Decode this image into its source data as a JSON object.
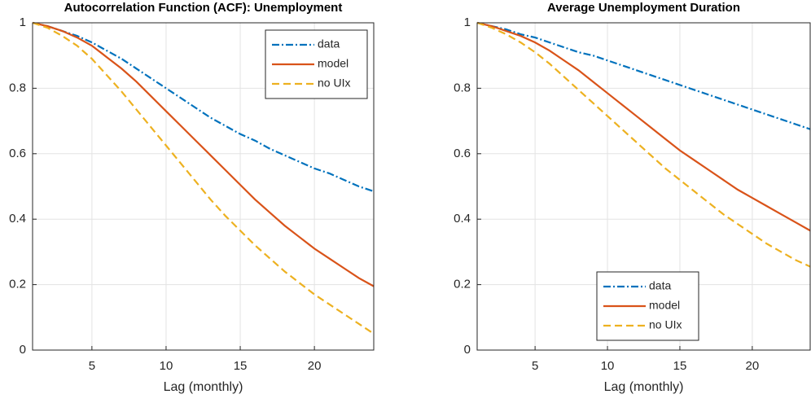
{
  "chart_data": [
    {
      "type": "line",
      "title": "Autocorrelation Function (ACF): Unemployment",
      "xlabel": "Lag (monthly)",
      "x": [
        1,
        2,
        3,
        4,
        5,
        6,
        7,
        8,
        9,
        10,
        11,
        12,
        13,
        14,
        15,
        16,
        17,
        18,
        19,
        20,
        21,
        22,
        23,
        24
      ],
      "xlim": [
        1,
        24
      ],
      "xticks": [
        5,
        10,
        15,
        20
      ],
      "ylim": [
        0,
        1
      ],
      "yticks": [
        0,
        0.2,
        0.4,
        0.6,
        0.8,
        1
      ],
      "grid": true,
      "legend": "upper right",
      "series": [
        {
          "name": "data",
          "color": "#0072BD",
          "linestyle": "dashdot",
          "values": [
            1,
            0.99,
            0.975,
            0.96,
            0.94,
            0.915,
            0.89,
            0.86,
            0.83,
            0.8,
            0.77,
            0.74,
            0.71,
            0.685,
            0.66,
            0.64,
            0.615,
            0.595,
            0.575,
            0.555,
            0.54,
            0.52,
            0.5,
            0.485
          ]
        },
        {
          "name": "model",
          "color": "#D95319",
          "linestyle": "solid",
          "values": [
            1,
            0.99,
            0.975,
            0.955,
            0.93,
            0.895,
            0.86,
            0.82,
            0.775,
            0.73,
            0.685,
            0.64,
            0.595,
            0.55,
            0.505,
            0.46,
            0.42,
            0.38,
            0.345,
            0.31,
            0.28,
            0.25,
            0.22,
            0.195
          ]
        },
        {
          "name": "no UIx",
          "color": "#EDB120",
          "linestyle": "dashed",
          "values": [
            1,
            0.985,
            0.96,
            0.93,
            0.89,
            0.84,
            0.79,
            0.735,
            0.68,
            0.625,
            0.57,
            0.515,
            0.46,
            0.41,
            0.365,
            0.32,
            0.28,
            0.24,
            0.205,
            0.17,
            0.14,
            0.11,
            0.08,
            0.05
          ]
        }
      ]
    },
    {
      "type": "line",
      "title": "Average Unemployment Duration",
      "xlabel": "Lag (monthly)",
      "x": [
        1,
        2,
        3,
        4,
        5,
        6,
        7,
        8,
        9,
        10,
        11,
        12,
        13,
        14,
        15,
        16,
        17,
        18,
        19,
        20,
        21,
        22,
        23,
        24
      ],
      "xlim": [
        1,
        24
      ],
      "xticks": [
        5,
        10,
        15,
        20
      ],
      "ylim": [
        0,
        1
      ],
      "yticks": [
        0,
        0.2,
        0.4,
        0.6,
        0.8,
        1
      ],
      "grid": true,
      "legend": "lower center",
      "series": [
        {
          "name": "data",
          "color": "#0072BD",
          "linestyle": "dashdot",
          "values": [
            1,
            0.99,
            0.98,
            0.965,
            0.955,
            0.94,
            0.925,
            0.91,
            0.9,
            0.885,
            0.87,
            0.855,
            0.84,
            0.825,
            0.81,
            0.795,
            0.78,
            0.765,
            0.75,
            0.735,
            0.72,
            0.705,
            0.69,
            0.675
          ]
        },
        {
          "name": "model",
          "color": "#D95319",
          "linestyle": "solid",
          "values": [
            1,
            0.99,
            0.975,
            0.96,
            0.94,
            0.915,
            0.885,
            0.855,
            0.82,
            0.785,
            0.75,
            0.715,
            0.68,
            0.645,
            0.61,
            0.58,
            0.55,
            0.52,
            0.49,
            0.465,
            0.44,
            0.415,
            0.39,
            0.365
          ]
        },
        {
          "name": "no UIx",
          "color": "#EDB120",
          "linestyle": "dashed",
          "values": [
            1,
            0.985,
            0.965,
            0.94,
            0.91,
            0.875,
            0.835,
            0.795,
            0.755,
            0.715,
            0.675,
            0.635,
            0.595,
            0.555,
            0.52,
            0.485,
            0.45,
            0.415,
            0.385,
            0.355,
            0.325,
            0.3,
            0.275,
            0.255
          ]
        }
      ]
    }
  ]
}
